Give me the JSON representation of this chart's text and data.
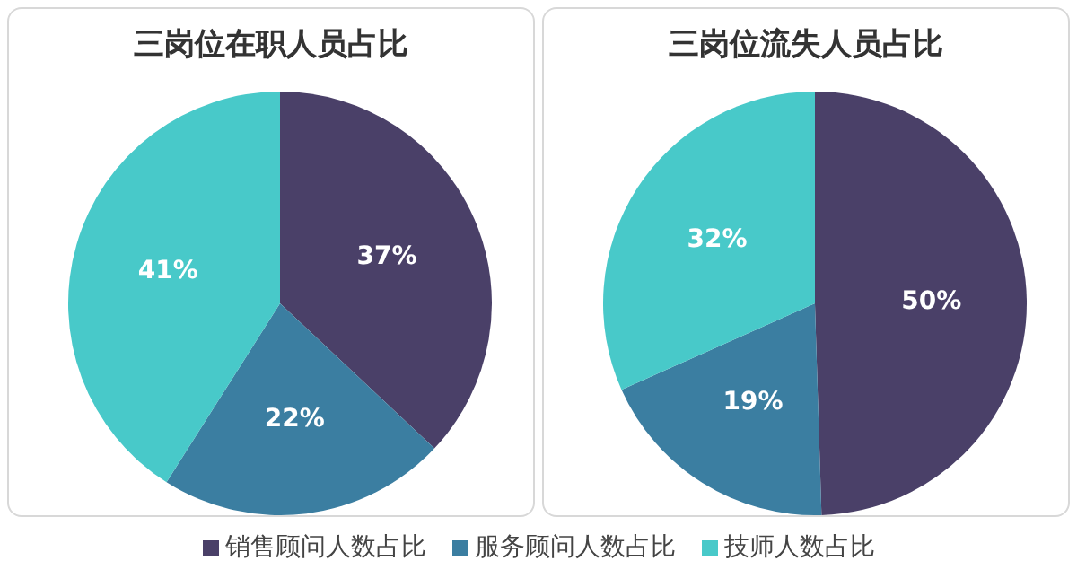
{
  "chart_data": [
    {
      "type": "pie",
      "title": "三岗位在职人员占比",
      "categories": [
        "销售顾问人数占比",
        "服务顾问人数占比",
        "技师人数占比"
      ],
      "values": [
        37,
        22,
        41
      ],
      "colors": [
        "#4a4068",
        "#3b7ea1",
        "#48c9c9"
      ],
      "value_labels": [
        "37%",
        "22%",
        "41%"
      ],
      "legend": "bottom"
    },
    {
      "type": "pie",
      "title": "三岗位流失人员占比",
      "categories": [
        null,
        null,
        null
      ],
      "values": [
        50,
        19,
        32
      ],
      "colors": [
        "#4a4068",
        "#3b7ea1",
        "#48c9c9"
      ],
      "value_labels": [
        "50%",
        "19%",
        "32%"
      ]
    }
  ]
}
